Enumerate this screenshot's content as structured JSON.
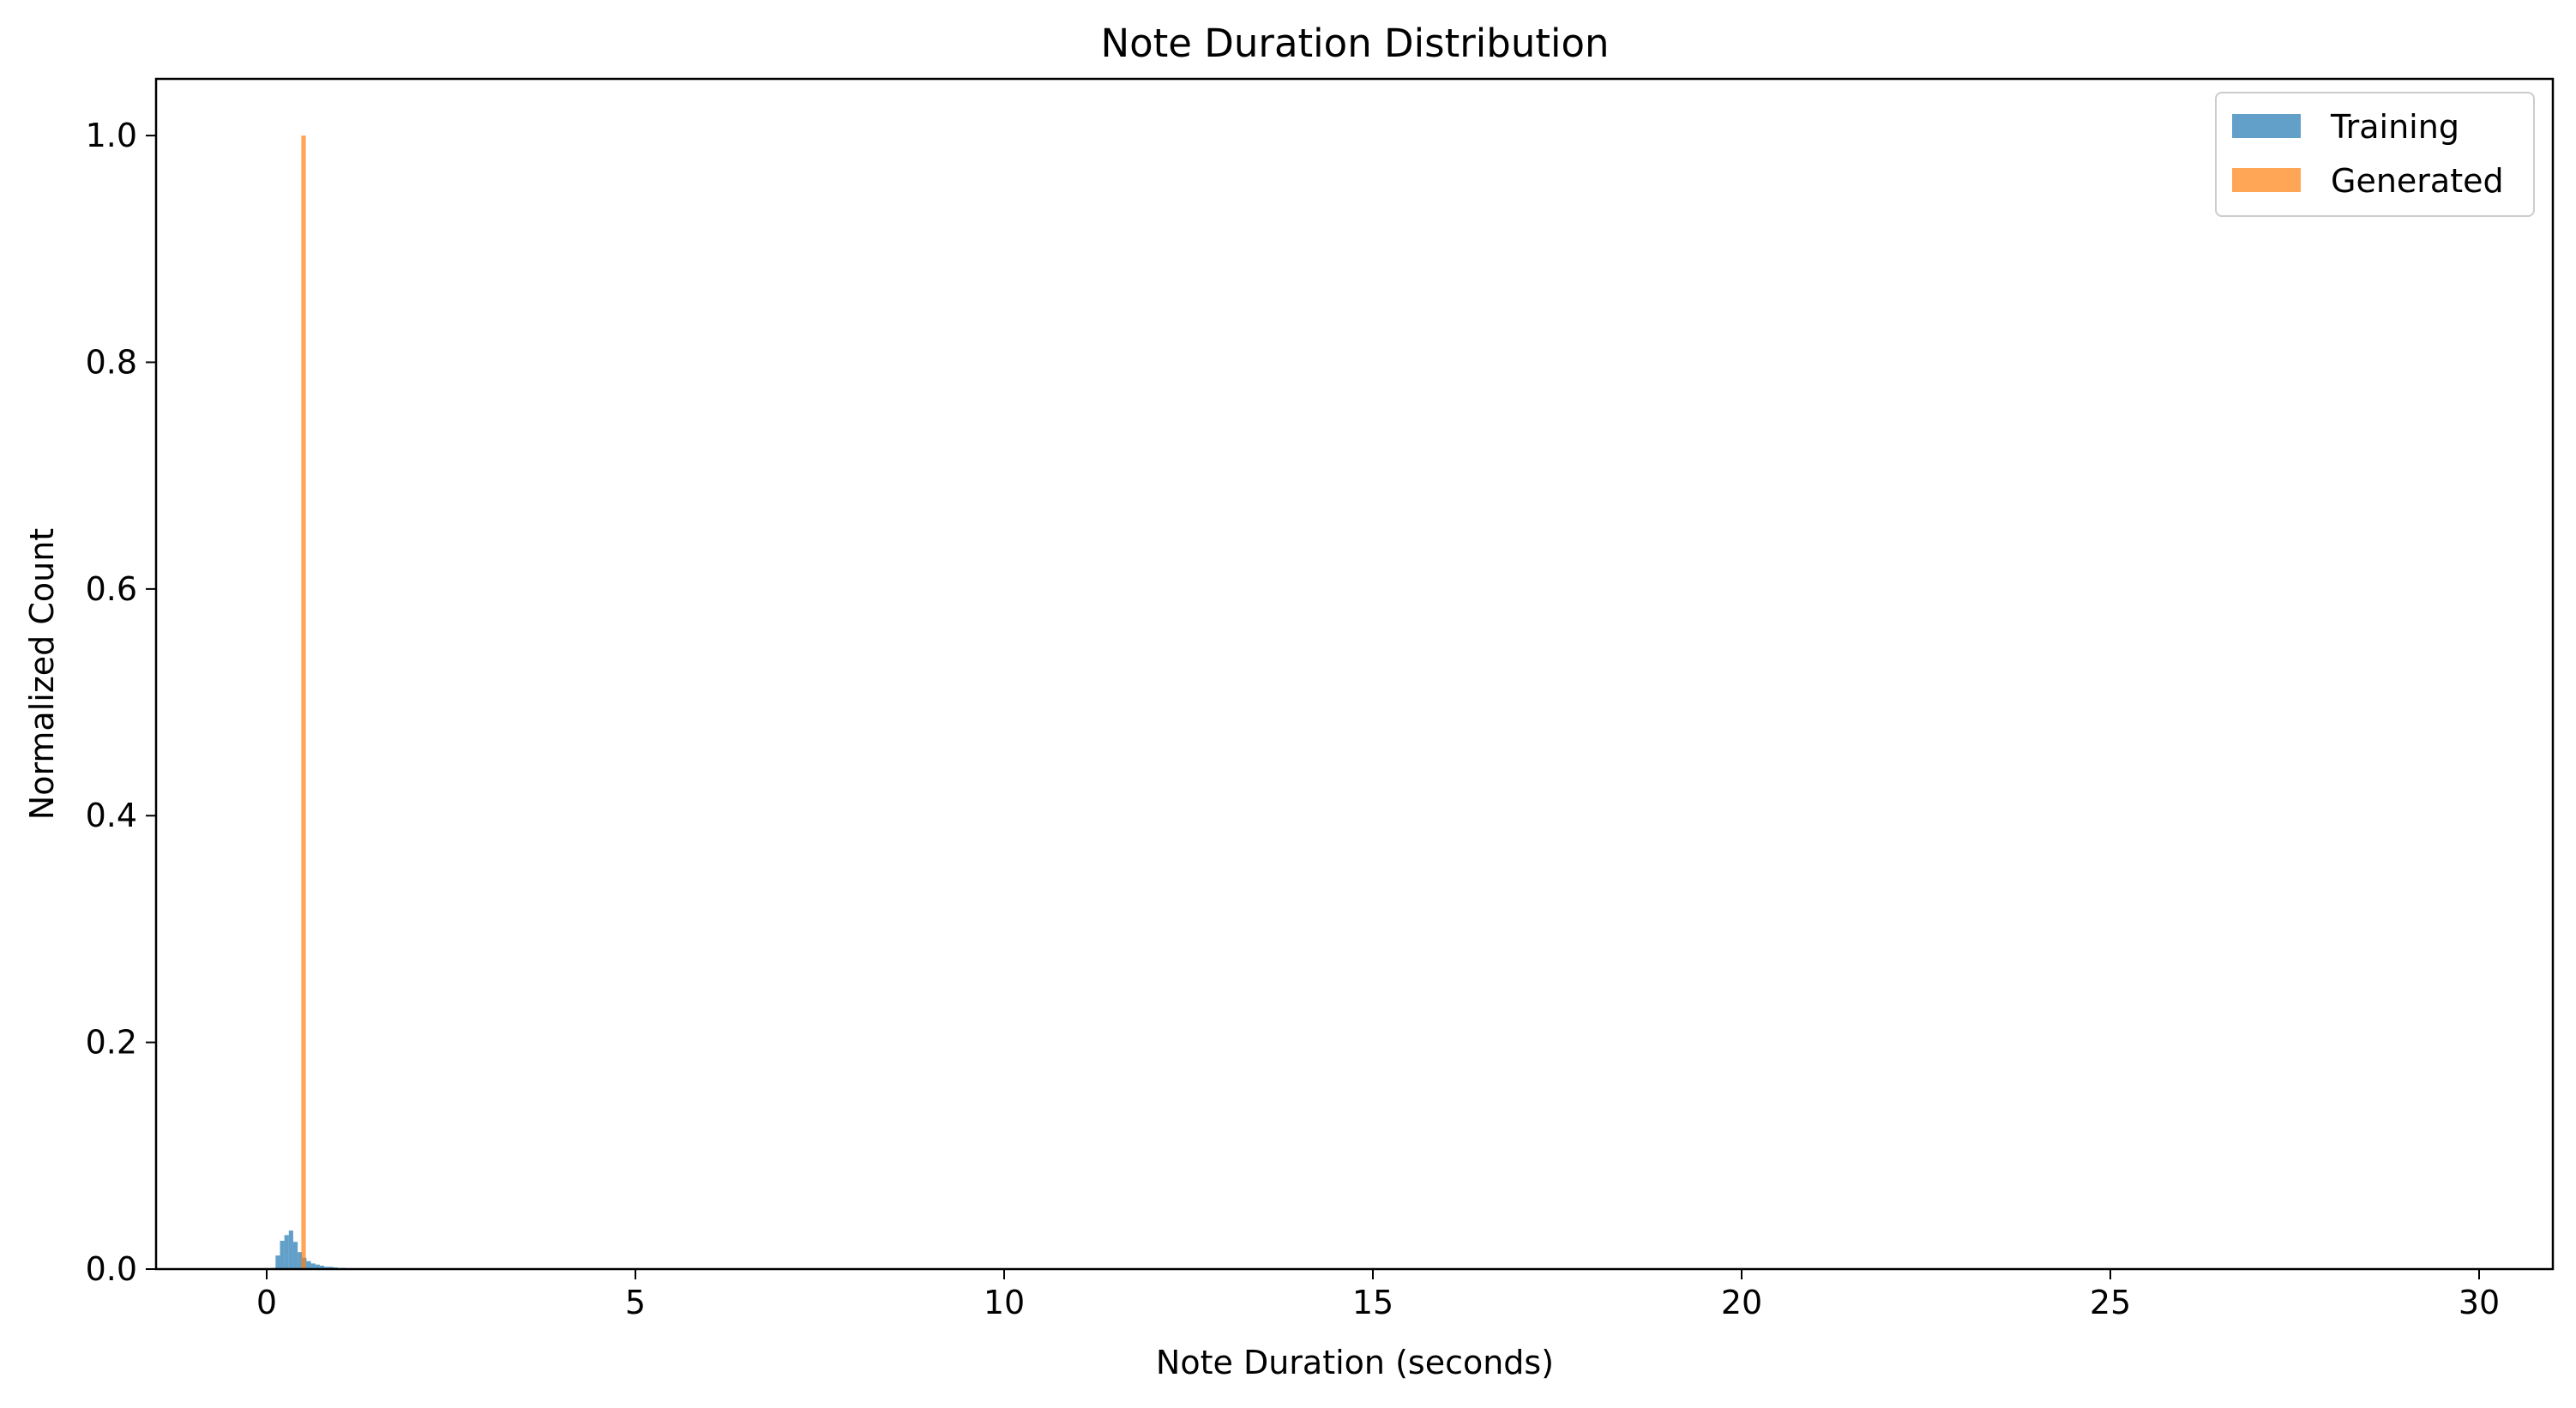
{
  "chart_data": {
    "type": "bar",
    "title": "Note Duration Distribution",
    "xlabel": "Note Duration (seconds)",
    "ylabel": "Normalized Count",
    "xlim": [
      -1.5,
      31.0
    ],
    "ylim": [
      0,
      1.05
    ],
    "xticks": [
      0,
      5,
      10,
      15,
      20,
      25,
      30
    ],
    "xtick_labels": [
      "0",
      "5",
      "10",
      "15",
      "20",
      "25",
      "30"
    ],
    "yticks": [
      0.0,
      0.2,
      0.4,
      0.6,
      0.8,
      1.0
    ],
    "ytick_labels": [
      "0.0",
      "0.2",
      "0.4",
      "0.6",
      "0.8",
      "1.0"
    ],
    "grid": false,
    "legend_position": "top-right",
    "series": [
      {
        "name": "Training",
        "color": "#1f77b4",
        "opacity": 0.7,
        "bin_width": 0.06,
        "bins": [
          {
            "x": 0.06,
            "y": 0.001
          },
          {
            "x": 0.12,
            "y": 0.012
          },
          {
            "x": 0.18,
            "y": 0.025
          },
          {
            "x": 0.24,
            "y": 0.03
          },
          {
            "x": 0.3,
            "y": 0.034
          },
          {
            "x": 0.36,
            "y": 0.024
          },
          {
            "x": 0.42,
            "y": 0.015
          },
          {
            "x": 0.48,
            "y": 0.01
          },
          {
            "x": 0.54,
            "y": 0.007
          },
          {
            "x": 0.6,
            "y": 0.005
          },
          {
            "x": 0.66,
            "y": 0.004
          },
          {
            "x": 0.72,
            "y": 0.003
          },
          {
            "x": 0.78,
            "y": 0.002
          },
          {
            "x": 0.84,
            "y": 0.002
          },
          {
            "x": 0.9,
            "y": 0.0015
          },
          {
            "x": 0.96,
            "y": 0.001
          },
          {
            "x": 1.02,
            "y": 0.001
          },
          {
            "x": 1.08,
            "y": 0.0007
          },
          {
            "x": 1.14,
            "y": 0.0005
          },
          {
            "x": 1.2,
            "y": 0.0004
          }
        ]
      },
      {
        "name": "Generated",
        "color": "#ff7f0e",
        "opacity": 0.7,
        "bin_width": 0.06,
        "bins": [
          {
            "x": 0.47,
            "y": 1.0
          }
        ]
      }
    ]
  }
}
